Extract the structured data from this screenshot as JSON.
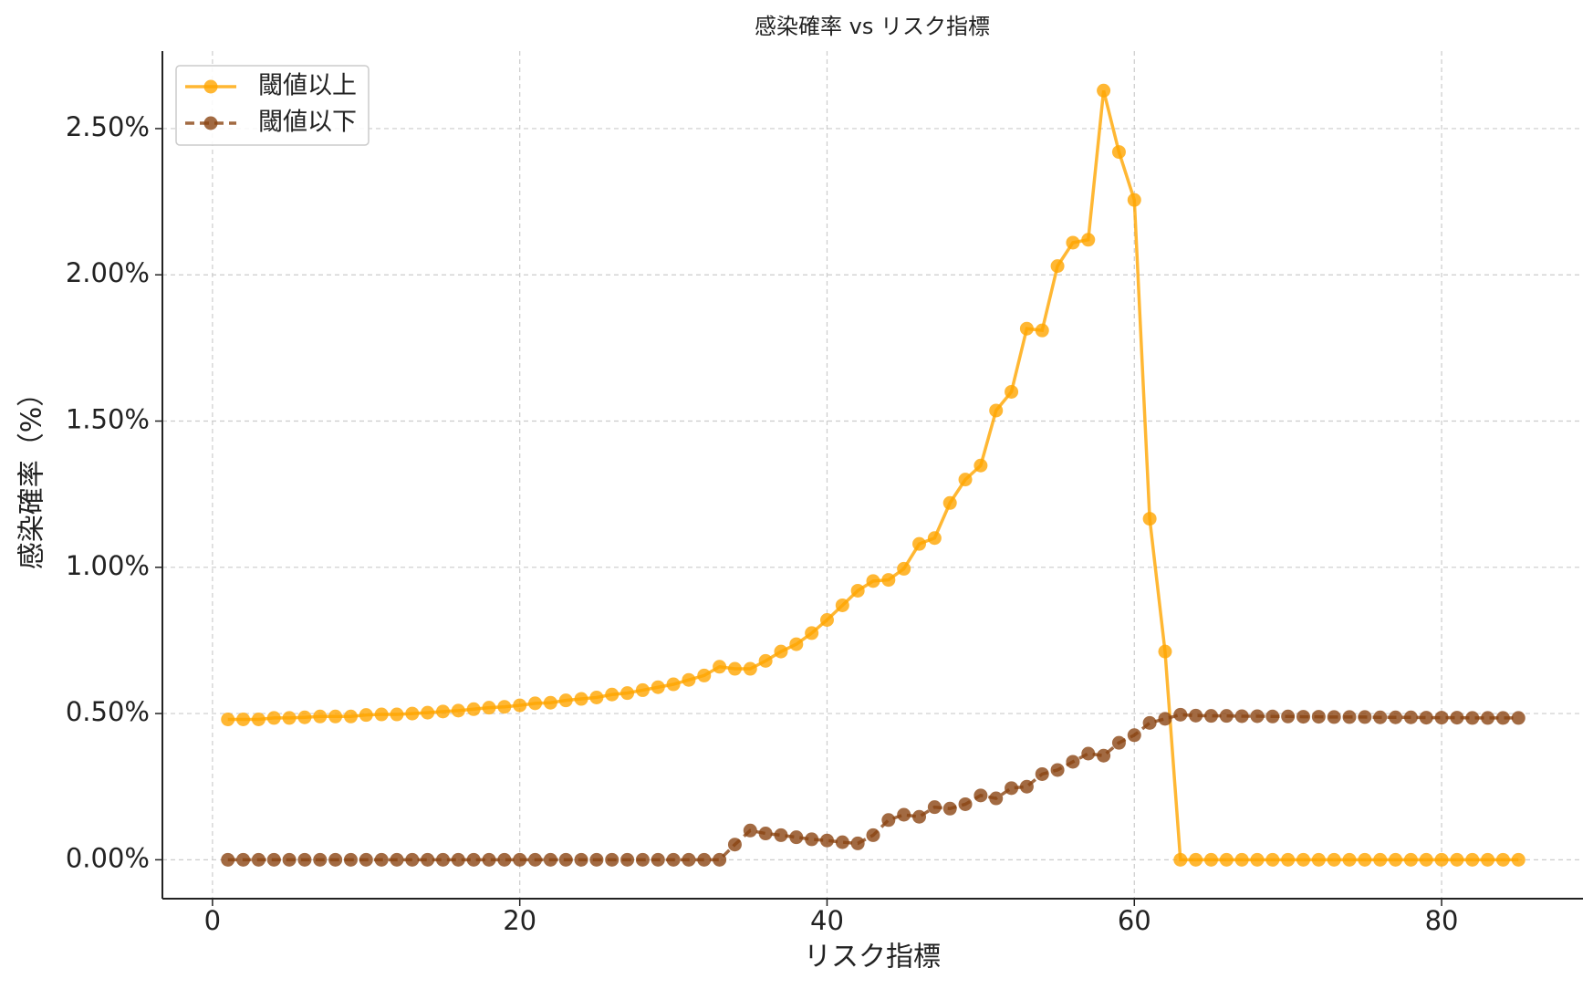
{
  "chart_data": {
    "type": "line",
    "title": "感染確率 vs リスク指標",
    "xlabel": "リスク指標",
    "ylabel": "感染確率（%）",
    "x": [
      1,
      2,
      3,
      4,
      5,
      6,
      7,
      8,
      9,
      10,
      11,
      12,
      13,
      14,
      15,
      16,
      17,
      18,
      19,
      20,
      21,
      22,
      23,
      24,
      25,
      26,
      27,
      28,
      29,
      30,
      31,
      32,
      33,
      34,
      35,
      36,
      37,
      38,
      39,
      40,
      41,
      42,
      43,
      44,
      45,
      46,
      47,
      48,
      49,
      50,
      51,
      52,
      53,
      54,
      55,
      56,
      57,
      58,
      59,
      60,
      61,
      62,
      63,
      64,
      65,
      66,
      67,
      68,
      69,
      70,
      71,
      72,
      73,
      74,
      75,
      76,
      77,
      78,
      79,
      80,
      81,
      82,
      83,
      84,
      85
    ],
    "series": [
      {
        "name": "閾値以上",
        "color": "#FFA500",
        "linestyle": "solid",
        "values": [
          0.48,
          0.48,
          0.48,
          0.485,
          0.485,
          0.487,
          0.49,
          0.49,
          0.49,
          0.495,
          0.497,
          0.497,
          0.5,
          0.503,
          0.507,
          0.51,
          0.515,
          0.52,
          0.523,
          0.528,
          0.535,
          0.537,
          0.545,
          0.55,
          0.555,
          0.565,
          0.57,
          0.58,
          0.59,
          0.6,
          0.615,
          0.63,
          0.66,
          0.653,
          0.653,
          0.68,
          0.712,
          0.737,
          0.775,
          0.82,
          0.87,
          0.92,
          0.953,
          0.957,
          0.995,
          1.08,
          1.1,
          1.22,
          1.3,
          1.348,
          1.536,
          1.6,
          1.816,
          1.81,
          2.03,
          2.11,
          2.12,
          2.63,
          2.42,
          2.256,
          1.166,
          0.712,
          0,
          0,
          0,
          0,
          0,
          0,
          0,
          0,
          0,
          0,
          0,
          0,
          0,
          0,
          0,
          0,
          0,
          0,
          0,
          0,
          0,
          0,
          0
        ]
      },
      {
        "name": "閾値以下",
        "color": "#8B4513",
        "linestyle": "dashed",
        "values": [
          0,
          0,
          0,
          0,
          0,
          0,
          0,
          0,
          0,
          0,
          0,
          0,
          0,
          0,
          0,
          0,
          0,
          0,
          0,
          0,
          0,
          0,
          0,
          0,
          0,
          0,
          0,
          0,
          0,
          0,
          0,
          0,
          0,
          0.052,
          0.1,
          0.09,
          0.084,
          0.077,
          0.07,
          0.066,
          0.06,
          0.056,
          0.084,
          0.136,
          0.154,
          0.147,
          0.18,
          0.175,
          0.19,
          0.22,
          0.21,
          0.245,
          0.25,
          0.293,
          0.307,
          0.335,
          0.363,
          0.356,
          0.4,
          0.426,
          0.468,
          0.482,
          0.496,
          0.493,
          0.492,
          0.492,
          0.491,
          0.491,
          0.49,
          0.49,
          0.489,
          0.489,
          0.488,
          0.488,
          0.488,
          0.487,
          0.487,
          0.487,
          0.486,
          0.486,
          0.486,
          0.485,
          0.485,
          0.485,
          0.485
        ]
      }
    ],
    "xlim": [
      -3.26,
      89.2
    ],
    "ylim": [
      -0.133,
      2.765
    ],
    "xticks": [
      0,
      20,
      40,
      60,
      80
    ],
    "yticks": [
      {
        "value": 0,
        "label": "0.00%"
      },
      {
        "value": 0.5,
        "label": "0.50%"
      },
      {
        "value": 1,
        "label": "1.00%"
      },
      {
        "value": 1.5,
        "label": "1.50%"
      },
      {
        "value": 2,
        "label": "2.00%"
      },
      {
        "value": 2.5,
        "label": "2.50%"
      }
    ],
    "grid": true,
    "legend": "upper left"
  }
}
